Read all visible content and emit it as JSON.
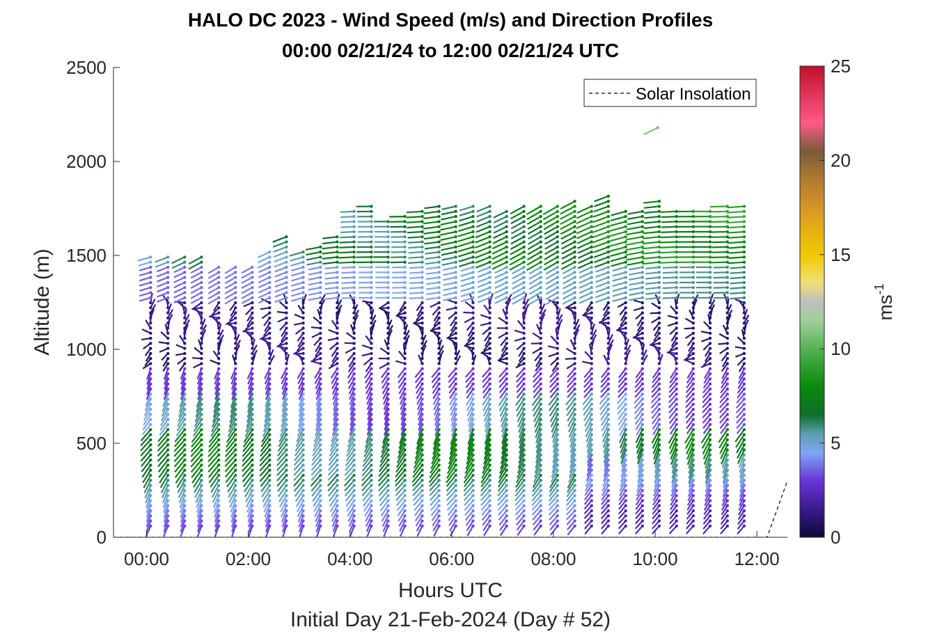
{
  "chart_data": {
    "type": "wind-barb-profile",
    "title": "HALO DC 2023 - Wind Speed (m/s) and Direction Profiles",
    "subtitle": "00:00 02/21/24 to 12:00 02/21/24  UTC",
    "xlabel": "Hours UTC",
    "xlabel2": "Initial Day 21-Feb-2024 (Day # 52)",
    "ylabel": "Altitude (m)",
    "xlim_hours": [
      -0.65,
      12.6
    ],
    "ylim": [
      0,
      2500
    ],
    "x_ticks": [
      {
        "value": 0,
        "label": "00:00"
      },
      {
        "value": 2,
        "label": "02:00"
      },
      {
        "value": 4,
        "label": "04:00"
      },
      {
        "value": 6,
        "label": "06:00"
      },
      {
        "value": 8,
        "label": "08:00"
      },
      {
        "value": 10,
        "label": "10:00"
      },
      {
        "value": 12,
        "label": "12:00"
      }
    ],
    "y_ticks": [
      {
        "value": 0,
        "label": "0"
      },
      {
        "value": 500,
        "label": "500"
      },
      {
        "value": 1000,
        "label": "1000"
      },
      {
        "value": 1500,
        "label": "1500"
      },
      {
        "value": 2000,
        "label": "2000"
      },
      {
        "value": 2500,
        "label": "2500"
      }
    ],
    "colorbar": {
      "label": "ms",
      "label_superscript": "-1",
      "range": [
        0,
        25
      ],
      "ticks": [
        "0",
        "5",
        "10",
        "15",
        "20",
        "25"
      ],
      "stops": [
        {
          "v": 0,
          "c": "#0b0b3b"
        },
        {
          "v": 1.5,
          "c": "#3a1a8c"
        },
        {
          "v": 3,
          "c": "#6a35d6"
        },
        {
          "v": 4.5,
          "c": "#7fa6f5"
        },
        {
          "v": 5.5,
          "c": "#5b9fb0"
        },
        {
          "v": 6.5,
          "c": "#0f6e2a"
        },
        {
          "v": 8,
          "c": "#0a8a0a"
        },
        {
          "v": 9.5,
          "c": "#3fa83f"
        },
        {
          "v": 11.5,
          "c": "#9fd09a"
        },
        {
          "v": 12.5,
          "c": "#bfbfbf"
        },
        {
          "v": 13.5,
          "c": "#f0e07a"
        },
        {
          "v": 15,
          "c": "#f0c800"
        },
        {
          "v": 17,
          "c": "#e0a020"
        },
        {
          "v": 19,
          "c": "#b07a30"
        },
        {
          "v": 20.5,
          "c": "#7a5a3a"
        },
        {
          "v": 22,
          "c": "#ff5a86"
        },
        {
          "v": 25,
          "c": "#c0102a"
        }
      ]
    },
    "legend": {
      "entries": [
        "Solar Insolation"
      ],
      "location": "top-right"
    },
    "solar_insolation": {
      "x_hours": [
        -0.65,
        12.2,
        12.6
      ],
      "altitude": [
        0,
        0,
        300
      ]
    },
    "profiles": {
      "times_hours": [
        0.08,
        0.42,
        0.75,
        1.08,
        1.42,
        1.75,
        2.08,
        2.42,
        2.75,
        3.08,
        3.42,
        3.75,
        4.08,
        4.42,
        4.75,
        5.08,
        5.42,
        5.75,
        6.08,
        6.42,
        6.75,
        7.08,
        7.42,
        7.75,
        8.08,
        8.42,
        8.75,
        9.08,
        9.42,
        9.75,
        10.08,
        10.42,
        10.75,
        11.08,
        11.42,
        11.75
      ],
      "profile_top_m": [
        1500,
        1500,
        1500,
        1500,
        1460,
        1460,
        1460,
        1540,
        1620,
        1520,
        1560,
        1620,
        1740,
        1780,
        1700,
        1720,
        1760,
        1780,
        1780,
        1780,
        1780,
        1760,
        1770,
        1780,
        1780,
        1790,
        1780,
        1840,
        1760,
        1760,
        1790,
        1760,
        1740,
        1760,
        1780,
        1780
      ],
      "outlier_barb": {
        "time_hours": 10.05,
        "altitude": 2180,
        "speed": 11
      }
    }
  }
}
